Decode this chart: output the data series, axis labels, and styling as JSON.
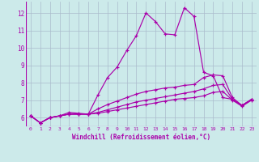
{
  "xlabel": "Windchill (Refroidissement éolien,°C)",
  "bg_color": "#cceaea",
  "line_color": "#aa00aa",
  "grid_color": "#aabbcc",
  "text_color": "#aa00aa",
  "x_ticks": [
    0,
    1,
    2,
    3,
    4,
    5,
    6,
    7,
    8,
    9,
    10,
    11,
    12,
    13,
    14,
    15,
    16,
    17,
    18,
    19,
    20,
    21,
    22,
    23
  ],
  "y_ticks": [
    6,
    7,
    8,
    9,
    10,
    11,
    12
  ],
  "xlim": [
    -0.5,
    23.5
  ],
  "ylim": [
    5.5,
    12.65
  ],
  "series": [
    [
      6.1,
      5.7,
      6.0,
      6.1,
      6.3,
      6.25,
      6.2,
      7.3,
      8.3,
      8.9,
      9.85,
      10.7,
      12.0,
      11.5,
      10.8,
      10.75,
      12.3,
      11.8,
      8.6,
      8.4,
      7.15,
      7.05,
      6.7,
      7.05
    ],
    [
      6.1,
      5.7,
      6.0,
      6.1,
      6.2,
      6.2,
      6.2,
      6.5,
      6.75,
      6.95,
      7.15,
      7.35,
      7.5,
      7.6,
      7.7,
      7.75,
      7.85,
      7.9,
      8.3,
      8.45,
      8.4,
      7.15,
      6.7,
      7.05
    ],
    [
      6.1,
      5.7,
      6.0,
      6.1,
      6.2,
      6.2,
      6.2,
      6.3,
      6.45,
      6.6,
      6.75,
      6.9,
      7.0,
      7.1,
      7.2,
      7.3,
      7.4,
      7.5,
      7.65,
      7.85,
      7.9,
      7.05,
      6.7,
      7.05
    ],
    [
      6.1,
      5.7,
      6.0,
      6.1,
      6.2,
      6.2,
      6.2,
      6.25,
      6.35,
      6.45,
      6.55,
      6.65,
      6.75,
      6.85,
      6.95,
      7.05,
      7.1,
      7.15,
      7.25,
      7.45,
      7.5,
      7.0,
      6.65,
      7.0
    ]
  ]
}
